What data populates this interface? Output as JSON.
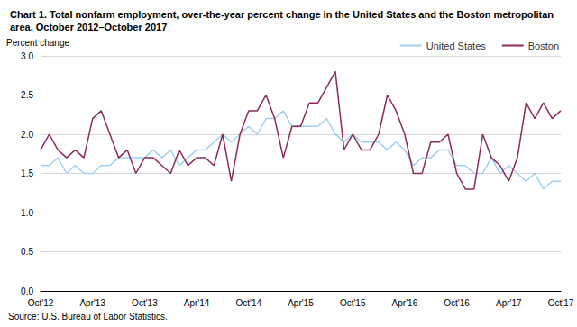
{
  "chart_data": {
    "type": "line",
    "title": "Chart 1. Total nonfarm employment, over-the-year percent change in the United States and the Boston metropolitan area, October 2012–October 2017",
    "ylabel": "Percent change",
    "source": "Source: U.S. Bureau of Labor Statistics.",
    "categories": [
      "Oct'12",
      null,
      null,
      null,
      null,
      null,
      "Apr'13",
      null,
      null,
      null,
      null,
      null,
      "Oct'13",
      null,
      null,
      null,
      null,
      null,
      "Apr'14",
      null,
      null,
      null,
      null,
      null,
      "Oct'14",
      null,
      null,
      null,
      null,
      null,
      "Apr'15",
      null,
      null,
      null,
      null,
      null,
      "Oct'15",
      null,
      null,
      null,
      null,
      null,
      "Apr'16",
      null,
      null,
      null,
      null,
      null,
      "Oct'16",
      null,
      null,
      null,
      null,
      null,
      "Apr'17",
      null,
      null,
      null,
      null,
      null,
      "Oct'17"
    ],
    "series": [
      {
        "name": "United States",
        "color": "#9fd0f0",
        "values": [
          1.6,
          1.6,
          1.7,
          1.5,
          1.6,
          1.5,
          1.5,
          1.6,
          1.6,
          1.7,
          1.7,
          1.7,
          1.7,
          1.8,
          1.7,
          1.8,
          1.6,
          1.7,
          1.8,
          1.8,
          1.9,
          2.0,
          1.9,
          2.0,
          2.1,
          2.0,
          2.2,
          2.2,
          2.3,
          2.1,
          2.1,
          2.1,
          2.1,
          2.2,
          2.0,
          1.9,
          2.0,
          1.9,
          1.9,
          1.9,
          1.8,
          1.9,
          1.8,
          1.6,
          1.7,
          1.7,
          1.8,
          1.8,
          1.6,
          1.6,
          1.5,
          1.5,
          1.7,
          1.5,
          1.6,
          1.5,
          1.4,
          1.5,
          1.3,
          1.4,
          1.4
        ]
      },
      {
        "name": "Boston",
        "color": "#8b2a5c",
        "values": [
          1.8,
          2.0,
          1.8,
          1.7,
          1.8,
          1.7,
          2.2,
          2.3,
          2.0,
          1.7,
          1.8,
          1.5,
          1.7,
          1.7,
          1.6,
          1.5,
          1.8,
          1.6,
          1.7,
          1.7,
          1.6,
          2.0,
          1.4,
          2.0,
          2.3,
          2.3,
          2.5,
          2.2,
          1.7,
          2.1,
          2.1,
          2.4,
          2.4,
          2.6,
          2.8,
          1.8,
          2.0,
          1.8,
          1.8,
          2.0,
          2.5,
          2.3,
          2.0,
          1.5,
          1.5,
          1.9,
          1.9,
          2.0,
          1.5,
          1.3,
          1.3,
          2.0,
          1.7,
          1.6,
          1.4,
          1.7,
          2.4,
          2.2,
          2.4,
          2.2,
          2.3
        ]
      }
    ],
    "ylim": [
      0,
      3
    ],
    "yticks": [
      {
        "value": 0,
        "label": "0.0"
      },
      {
        "value": 0.5,
        "label": "0.5"
      },
      {
        "value": 1,
        "label": "1.0"
      },
      {
        "value": 1.5,
        "label": "1.5"
      },
      {
        "value": 2,
        "label": "2.0"
      },
      {
        "value": 2.5,
        "label": "2.5"
      },
      {
        "value": 3,
        "label": "3.0"
      }
    ],
    "grid": true,
    "legend": "top-right"
  }
}
